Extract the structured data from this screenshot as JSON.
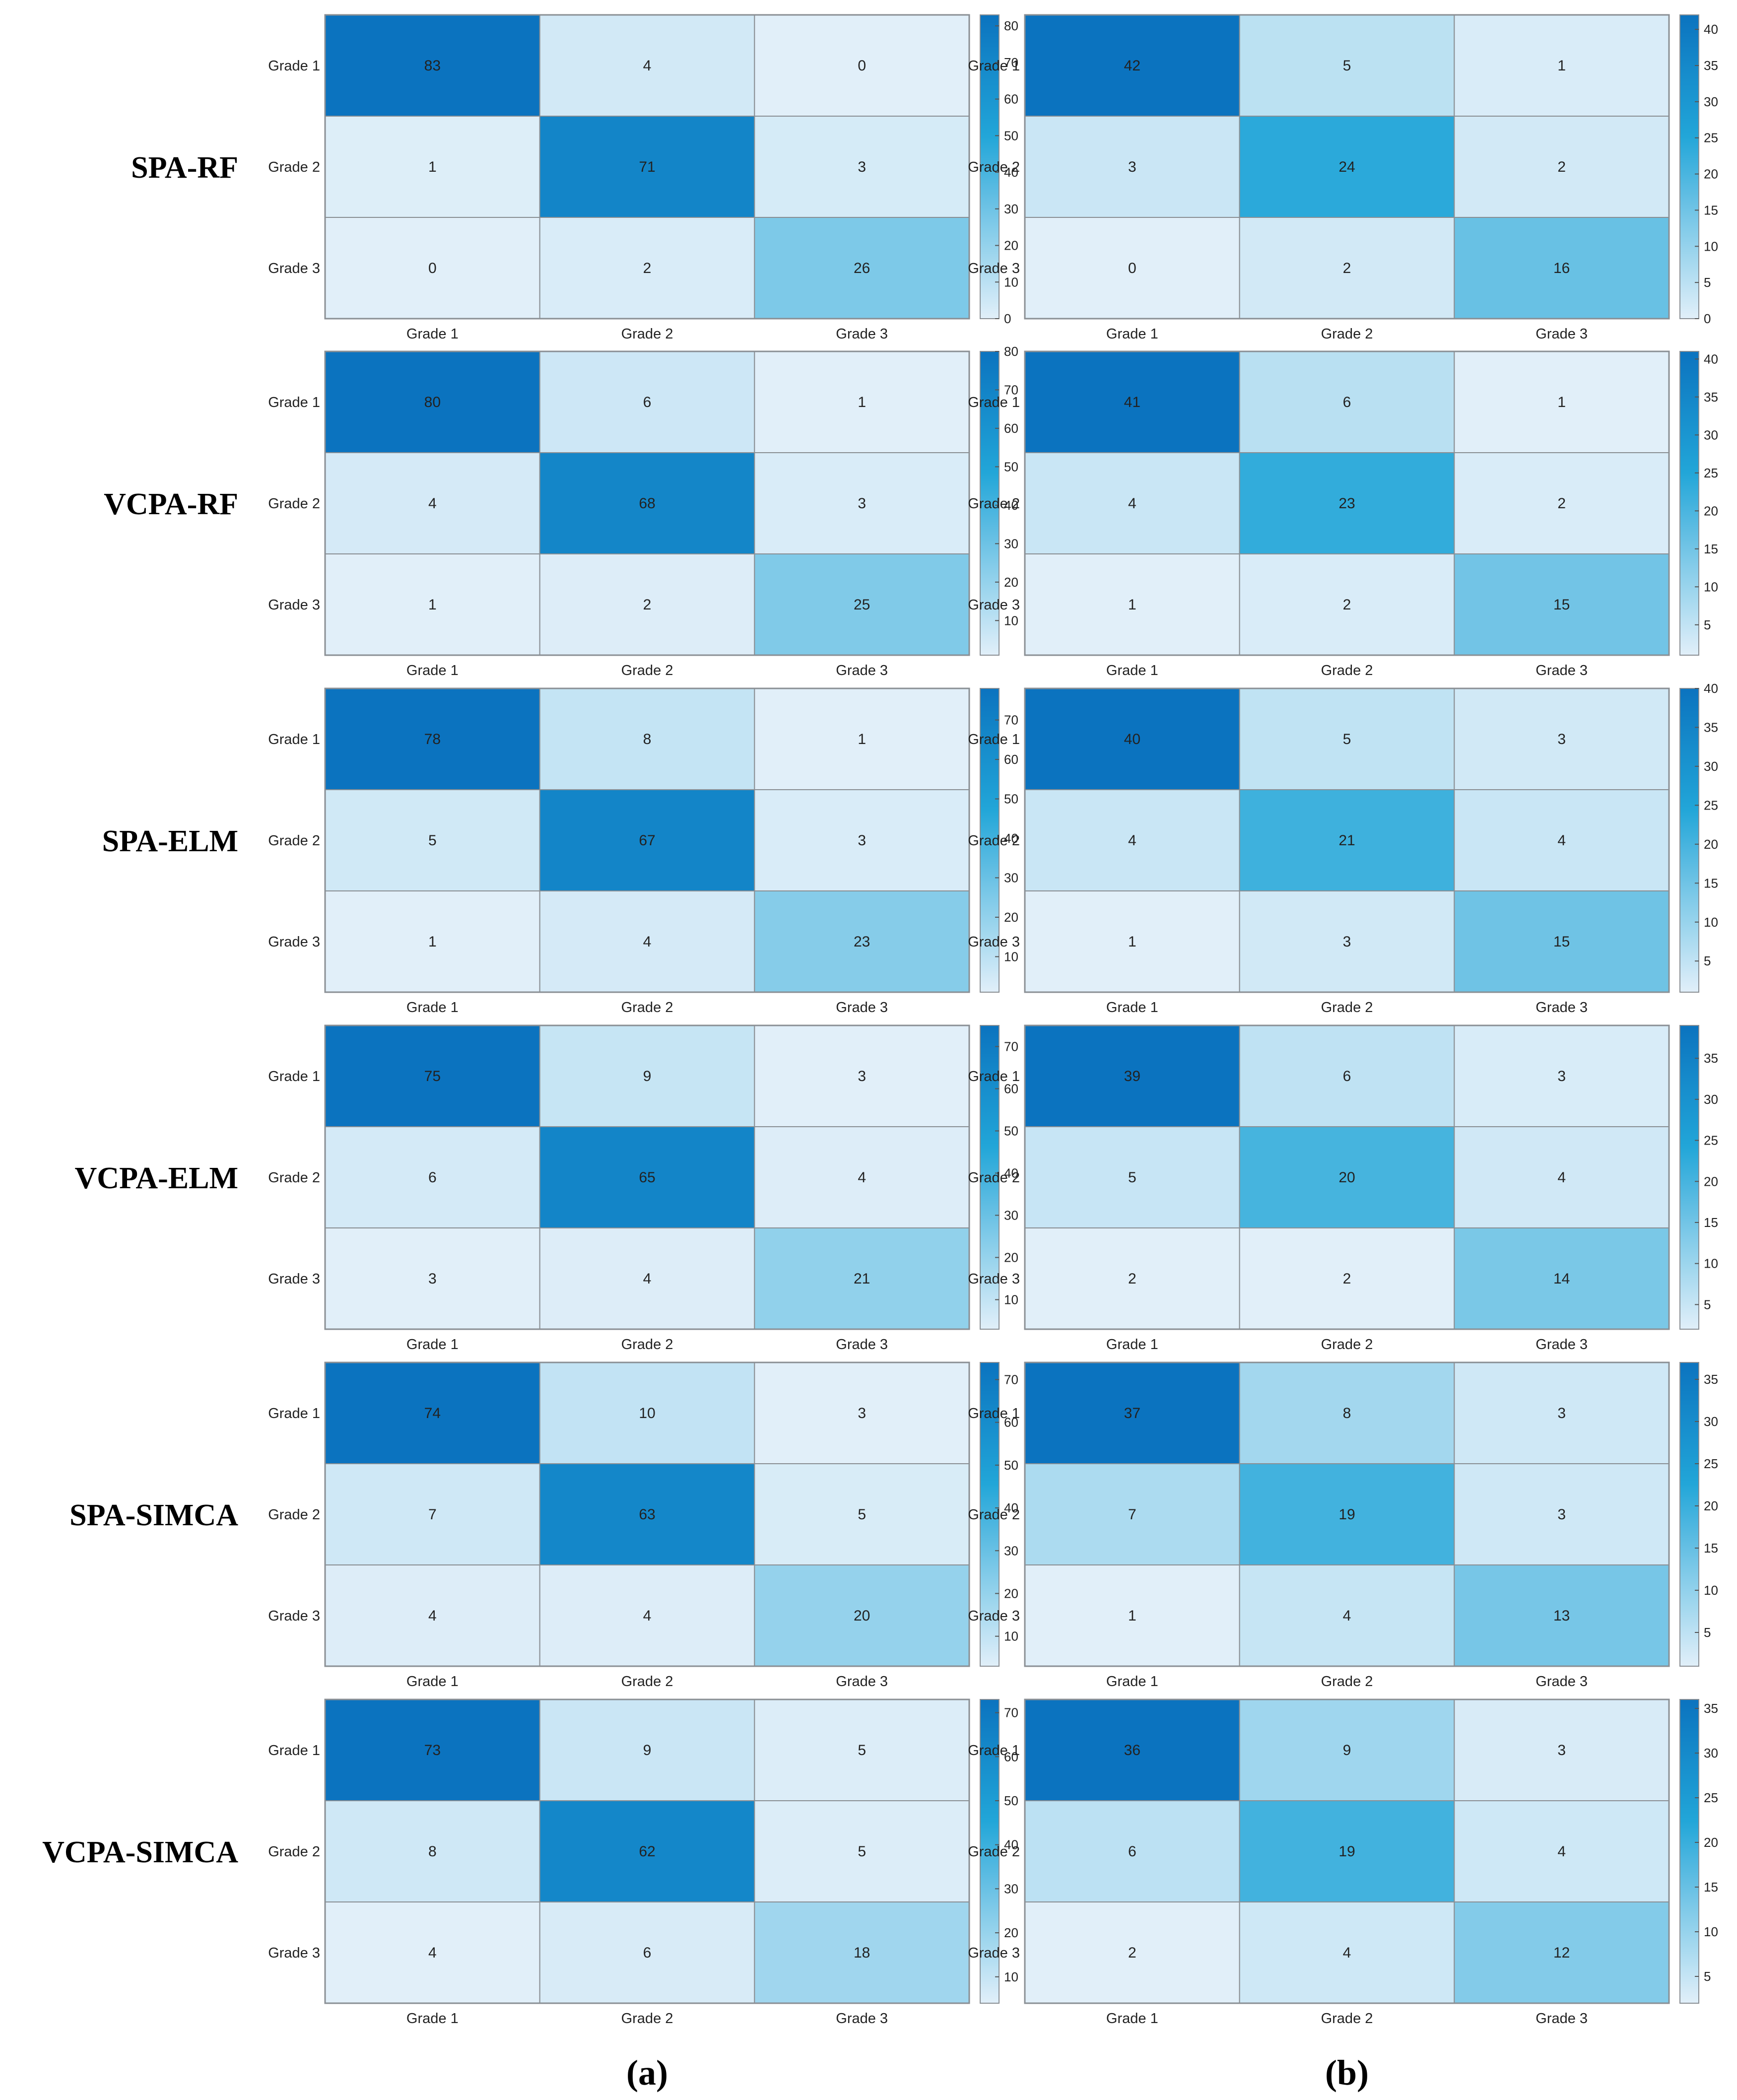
{
  "figure": {
    "panel_labels": [
      "(a)",
      "(b)"
    ]
  },
  "chart_data": [
    {
      "type": "heatmap",
      "row_title": "SPA-RF",
      "panel": "(a)",
      "x_categories": [
        "Grade 1",
        "Grade 2",
        "Grade 3"
      ],
      "y_categories": [
        "Grade 1",
        "Grade 2",
        "Grade 3"
      ],
      "values": [
        [
          83,
          4,
          0
        ],
        [
          1,
          71,
          3
        ],
        [
          0,
          2,
          26
        ]
      ],
      "colorbar": {
        "range": [
          0,
          83
        ],
        "ticks": [
          0,
          10,
          20,
          30,
          40,
          50,
          60,
          70,
          80
        ]
      }
    },
    {
      "type": "heatmap",
      "row_title": "SPA-RF",
      "panel": "(b)",
      "x_categories": [
        "Grade 1",
        "Grade 2",
        "Grade 3"
      ],
      "y_categories": [
        "Grade 1",
        "Grade 2",
        "Grade 3"
      ],
      "values": [
        [
          42,
          5,
          1
        ],
        [
          3,
          24,
          2
        ],
        [
          0,
          2,
          16
        ]
      ],
      "colorbar": {
        "range": [
          0,
          42
        ],
        "ticks": [
          0,
          5,
          10,
          15,
          20,
          25,
          30,
          35,
          40
        ]
      }
    },
    {
      "type": "heatmap",
      "row_title": "VCPA-RF",
      "panel": "(a)",
      "x_categories": [
        "Grade 1",
        "Grade 2",
        "Grade 3"
      ],
      "y_categories": [
        "Grade 1",
        "Grade 2",
        "Grade 3"
      ],
      "values": [
        [
          80,
          6,
          1
        ],
        [
          4,
          68,
          3
        ],
        [
          1,
          2,
          25
        ]
      ],
      "colorbar": {
        "range": [
          1,
          80
        ],
        "ticks": [
          10,
          20,
          30,
          40,
          50,
          60,
          70,
          80
        ]
      }
    },
    {
      "type": "heatmap",
      "row_title": "VCPA-RF",
      "panel": "(b)",
      "x_categories": [
        "Grade 1",
        "Grade 2",
        "Grade 3"
      ],
      "y_categories": [
        "Grade 1",
        "Grade 2",
        "Grade 3"
      ],
      "values": [
        [
          41,
          6,
          1
        ],
        [
          4,
          23,
          2
        ],
        [
          1,
          2,
          15
        ]
      ],
      "colorbar": {
        "range": [
          1,
          41
        ],
        "ticks": [
          5,
          10,
          15,
          20,
          25,
          30,
          35,
          40
        ]
      }
    },
    {
      "type": "heatmap",
      "row_title": "SPA-ELM",
      "panel": "(a)",
      "x_categories": [
        "Grade 1",
        "Grade 2",
        "Grade 3"
      ],
      "y_categories": [
        "Grade 1",
        "Grade 2",
        "Grade 3"
      ],
      "values": [
        [
          78,
          8,
          1
        ],
        [
          5,
          67,
          3
        ],
        [
          1,
          4,
          23
        ]
      ],
      "colorbar": {
        "range": [
          1,
          78
        ],
        "ticks": [
          10,
          20,
          30,
          40,
          50,
          60,
          70
        ]
      }
    },
    {
      "type": "heatmap",
      "row_title": "SPA-ELM",
      "panel": "(b)",
      "x_categories": [
        "Grade 1",
        "Grade 2",
        "Grade 3"
      ],
      "y_categories": [
        "Grade 1",
        "Grade 2",
        "Grade 3"
      ],
      "values": [
        [
          40,
          5,
          3
        ],
        [
          4,
          21,
          4
        ],
        [
          1,
          3,
          15
        ]
      ],
      "colorbar": {
        "range": [
          1,
          40
        ],
        "ticks": [
          5,
          10,
          15,
          20,
          25,
          30,
          35,
          40
        ]
      }
    },
    {
      "type": "heatmap",
      "row_title": "VCPA-ELM",
      "panel": "(a)",
      "x_categories": [
        "Grade 1",
        "Grade 2",
        "Grade 3"
      ],
      "y_categories": [
        "Grade 1",
        "Grade 2",
        "Grade 3"
      ],
      "values": [
        [
          75,
          9,
          3
        ],
        [
          6,
          65,
          4
        ],
        [
          3,
          4,
          21
        ]
      ],
      "colorbar": {
        "range": [
          3,
          75
        ],
        "ticks": [
          10,
          20,
          30,
          40,
          50,
          60,
          70
        ]
      }
    },
    {
      "type": "heatmap",
      "row_title": "VCPA-ELM",
      "panel": "(b)",
      "x_categories": [
        "Grade 1",
        "Grade 2",
        "Grade 3"
      ],
      "y_categories": [
        "Grade 1",
        "Grade 2",
        "Grade 3"
      ],
      "values": [
        [
          39,
          6,
          3
        ],
        [
          5,
          20,
          4
        ],
        [
          2,
          2,
          14
        ]
      ],
      "colorbar": {
        "range": [
          2,
          39
        ],
        "ticks": [
          5,
          10,
          15,
          20,
          25,
          30,
          35
        ]
      }
    },
    {
      "type": "heatmap",
      "row_title": "SPA-SIMCA",
      "panel": "(a)",
      "x_categories": [
        "Grade 1",
        "Grade 2",
        "Grade 3"
      ],
      "y_categories": [
        "Grade 1",
        "Grade 2",
        "Grade 3"
      ],
      "values": [
        [
          74,
          10,
          3
        ],
        [
          7,
          63,
          5
        ],
        [
          4,
          4,
          20
        ]
      ],
      "colorbar": {
        "range": [
          3,
          74
        ],
        "ticks": [
          10,
          20,
          30,
          40,
          50,
          60,
          70
        ]
      }
    },
    {
      "type": "heatmap",
      "row_title": "SPA-SIMCA",
      "panel": "(b)",
      "x_categories": [
        "Grade 1",
        "Grade 2",
        "Grade 3"
      ],
      "y_categories": [
        "Grade 1",
        "Grade 2",
        "Grade 3"
      ],
      "values": [
        [
          37,
          8,
          3
        ],
        [
          7,
          19,
          3
        ],
        [
          1,
          4,
          13
        ]
      ],
      "colorbar": {
        "range": [
          1,
          37
        ],
        "ticks": [
          5,
          10,
          15,
          20,
          25,
          30,
          35
        ]
      }
    },
    {
      "type": "heatmap",
      "row_title": "VCPA-SIMCA",
      "panel": "(a)",
      "x_categories": [
        "Grade 1",
        "Grade 2",
        "Grade 3"
      ],
      "y_categories": [
        "Grade 1",
        "Grade 2",
        "Grade 3"
      ],
      "values": [
        [
          73,
          9,
          5
        ],
        [
          8,
          62,
          5
        ],
        [
          4,
          6,
          18
        ]
      ],
      "colorbar": {
        "range": [
          4,
          73
        ],
        "ticks": [
          10,
          20,
          30,
          40,
          50,
          60,
          70
        ]
      }
    },
    {
      "type": "heatmap",
      "row_title": "VCPA-SIMCA",
      "panel": "(b)",
      "x_categories": [
        "Grade 1",
        "Grade 2",
        "Grade 3"
      ],
      "y_categories": [
        "Grade 1",
        "Grade 2",
        "Grade 3"
      ],
      "values": [
        [
          36,
          9,
          3
        ],
        [
          6,
          19,
          4
        ],
        [
          2,
          4,
          12
        ]
      ],
      "colorbar": {
        "range": [
          2,
          36
        ],
        "ticks": [
          5,
          10,
          15,
          20,
          25,
          30,
          35
        ]
      }
    }
  ],
  "colors": {
    "low": "#e1eff9",
    "mid": "#22a6d8",
    "high": "#0b73bf",
    "grid": "#8a8f94"
  }
}
